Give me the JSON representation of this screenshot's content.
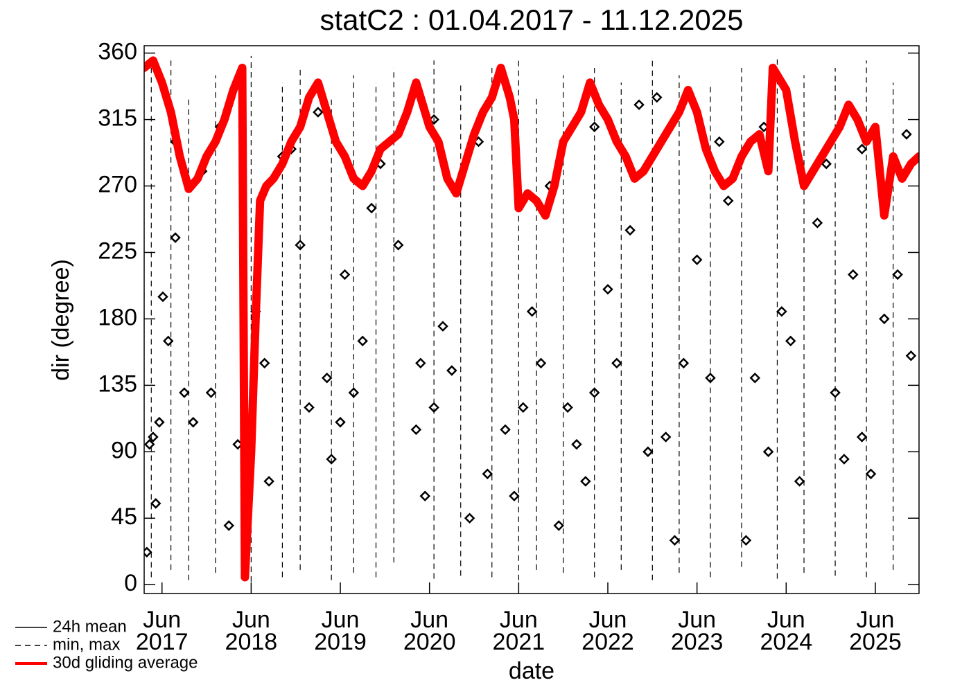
{
  "chart_data": {
    "type": "line",
    "title": "statC2 : 01.04.2017 - 11.12.2025",
    "x_label": "date",
    "y_label": "dir (degree)",
    "xlim": [
      2017.25,
      2025.94
    ],
    "ylim": [
      -6,
      365
    ],
    "yticks": [
      0,
      45,
      90,
      135,
      180,
      225,
      270,
      315,
      360
    ],
    "xticks": [
      {
        "value": 2017.45,
        "label": "Jun 2017"
      },
      {
        "value": 2018.45,
        "label": "Jun 2018"
      },
      {
        "value": 2019.45,
        "label": "Jun 2019"
      },
      {
        "value": 2020.45,
        "label": "Jun 2020"
      },
      {
        "value": 2021.45,
        "label": "Jun 2021"
      },
      {
        "value": 2022.45,
        "label": "Jun 2022"
      },
      {
        "value": 2023.45,
        "label": "Jun 2023"
      },
      {
        "value": 2024.45,
        "label": "Jun 2024"
      },
      {
        "value": 2025.45,
        "label": "Jun 2025"
      }
    ],
    "legend": "bottom-left",
    "series": [
      {
        "name": "24h mean",
        "style": "marker",
        "color": "#000000",
        "x": [
          2017.28,
          2017.31,
          2017.35,
          2017.38,
          2017.42,
          2017.46,
          2017.52,
          2017.6,
          2017.7,
          2017.8,
          2017.9,
          2018.0,
          2018.2,
          2018.3,
          2018.42,
          2018.5,
          2018.6,
          2018.65,
          2018.8,
          2019.0,
          2019.1,
          2019.3,
          2019.35,
          2019.45,
          2019.5,
          2019.6,
          2019.7,
          2019.8,
          2020.1,
          2020.3,
          2020.35,
          2020.4,
          2020.5,
          2020.6,
          2020.7,
          2020.9,
          2021.1,
          2021.3,
          2021.4,
          2021.5,
          2021.6,
          2021.7,
          2021.9,
          2022.0,
          2022.1,
          2022.2,
          2022.3,
          2022.45,
          2022.55,
          2022.7,
          2022.9,
          2023.1,
          2023.2,
          2023.3,
          2023.45,
          2023.6,
          2023.8,
          2024.0,
          2024.1,
          2024.25,
          2024.4,
          2024.5,
          2024.6,
          2024.8,
          2025.0,
          2025.1,
          2025.2,
          2025.3,
          2025.4,
          2025.55,
          2025.7,
          2025.85,
          2017.6,
          2018.1,
          2018.9,
          2019.2,
          2019.9,
          2020.5,
          2021.0,
          2021.8,
          2022.3,
          2022.8,
          2023.0,
          2023.7,
          2024.2,
          2024.9,
          2025.3,
          2025.8
        ],
        "values": [
          22,
          95,
          100,
          55,
          110,
          195,
          165,
          235,
          130,
          110,
          280,
          130,
          40,
          95,
          110,
          185,
          150,
          70,
          290,
          230,
          120,
          140,
          85,
          110,
          210,
          130,
          165,
          255,
          230,
          105,
          150,
          60,
          120,
          175,
          145,
          45,
          75,
          105,
          60,
          120,
          185,
          150,
          40,
          120,
          95,
          70,
          130,
          200,
          150,
          240,
          90,
          100,
          30,
          150,
          220,
          140,
          260,
          30,
          140,
          90,
          185,
          165,
          70,
          245,
          130,
          85,
          210,
          100,
          75,
          180,
          210,
          155,
          300,
          310,
          295,
          320,
          285,
          315,
          300,
          270,
          310,
          325,
          330,
          300,
          310,
          285,
          295,
          305
        ]
      },
      {
        "name": "min, max",
        "style": "range",
        "color": "#000000",
        "x": [
          2017.33,
          2017.55,
          2017.75,
          2018.05,
          2018.45,
          2018.8,
          2019.0,
          2019.35,
          2019.6,
          2019.85,
          2020.05,
          2020.5,
          2020.8,
          2021.15,
          2021.45,
          2021.65,
          2021.95,
          2022.3,
          2022.6,
          2022.95,
          2023.25,
          2023.6,
          2023.95,
          2024.35,
          2024.65,
          2025.0,
          2025.35,
          2025.65
        ],
        "min": [
          5,
          10,
          3,
          8,
          2,
          5,
          10,
          3,
          8,
          5,
          15,
          4,
          6,
          5,
          3,
          10,
          8,
          5,
          10,
          3,
          8,
          5,
          12,
          4,
          8,
          6,
          5,
          10
        ],
        "max": [
          350,
          355,
          330,
          345,
          358,
          340,
          350,
          330,
          345,
          340,
          350,
          355,
          340,
          350,
          355,
          330,
          345,
          350,
          340,
          355,
          345,
          340,
          350,
          358,
          345,
          350,
          355,
          340
        ]
      },
      {
        "name": "30d gliding average",
        "style": "line",
        "color": "#ff0000",
        "x": [
          2017.25,
          2017.35,
          2017.45,
          2017.55,
          2017.65,
          2017.75,
          2017.85,
          2017.95,
          2018.05,
          2018.15,
          2018.25,
          2018.35,
          2018.38,
          2018.45,
          2018.5,
          2018.55,
          2018.62,
          2018.7,
          2018.8,
          2018.9,
          2019.0,
          2019.1,
          2019.2,
          2019.3,
          2019.4,
          2019.5,
          2019.6,
          2019.7,
          2019.8,
          2019.9,
          2020.0,
          2020.1,
          2020.2,
          2020.3,
          2020.35,
          2020.45,
          2020.55,
          2020.65,
          2020.75,
          2020.85,
          2020.95,
          2021.05,
          2021.15,
          2021.25,
          2021.35,
          2021.4,
          2021.45,
          2021.55,
          2021.65,
          2021.75,
          2021.85,
          2021.95,
          2022.05,
          2022.15,
          2022.25,
          2022.35,
          2022.45,
          2022.55,
          2022.65,
          2022.75,
          2022.85,
          2022.95,
          2023.05,
          2023.15,
          2023.25,
          2023.35,
          2023.45,
          2023.55,
          2023.65,
          2023.75,
          2023.85,
          2023.95,
          2024.05,
          2024.15,
          2024.25,
          2024.3,
          2024.35,
          2024.45,
          2024.55,
          2024.65,
          2024.75,
          2024.85,
          2024.95,
          2025.05,
          2025.15,
          2025.25,
          2025.35,
          2025.45,
          2025.55,
          2025.65,
          2025.75,
          2025.85,
          2025.94
        ],
        "values": [
          350,
          355,
          340,
          320,
          290,
          268,
          275,
          290,
          300,
          315,
          335,
          350,
          5,
          90,
          180,
          260,
          270,
          275,
          285,
          300,
          310,
          330,
          340,
          320,
          300,
          290,
          275,
          270,
          280,
          295,
          300,
          305,
          320,
          340,
          330,
          310,
          300,
          275,
          265,
          285,
          305,
          320,
          330,
          350,
          330,
          315,
          255,
          265,
          260,
          250,
          270,
          300,
          310,
          320,
          340,
          325,
          315,
          300,
          290,
          275,
          280,
          290,
          300,
          310,
          320,
          335,
          320,
          295,
          280,
          270,
          275,
          290,
          300,
          305,
          280,
          350,
          345,
          335,
          300,
          270,
          280,
          290,
          300,
          310,
          325,
          315,
          300,
          310,
          250,
          290,
          275,
          285,
          290
        ]
      }
    ]
  }
}
